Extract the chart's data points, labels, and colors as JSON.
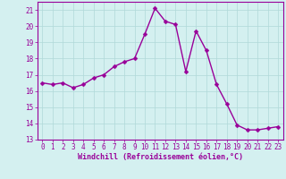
{
  "x": [
    0,
    1,
    2,
    3,
    4,
    5,
    6,
    7,
    8,
    9,
    10,
    11,
    12,
    13,
    14,
    15,
    16,
    17,
    18,
    19,
    20,
    21,
    22,
    23
  ],
  "y": [
    16.5,
    16.4,
    16.5,
    16.2,
    16.4,
    16.8,
    17.0,
    17.5,
    17.8,
    18.0,
    19.5,
    21.1,
    20.3,
    20.1,
    17.2,
    19.7,
    18.5,
    16.4,
    15.2,
    13.9,
    13.6,
    13.6,
    13.7,
    13.8
  ],
  "line_color": "#990099",
  "marker": "D",
  "marker_size": 2.5,
  "line_width": 1.0,
  "bg_color": "#d4f0f0",
  "grid_color": "#b0d8d8",
  "xlabel": "Windchill (Refroidissement éolien,°C)",
  "xlabel_color": "#990099",
  "tick_color": "#990099",
  "spine_color": "#990099",
  "ylim": [
    13,
    21.5
  ],
  "xlim": [
    -0.5,
    23.5
  ],
  "yticks": [
    13,
    14,
    15,
    16,
    17,
    18,
    19,
    20,
    21
  ],
  "xticks": [
    0,
    1,
    2,
    3,
    4,
    5,
    6,
    7,
    8,
    9,
    10,
    11,
    12,
    13,
    14,
    15,
    16,
    17,
    18,
    19,
    20,
    21,
    22,
    23
  ],
  "tick_fontsize": 5.5,
  "label_fontsize": 6.0
}
